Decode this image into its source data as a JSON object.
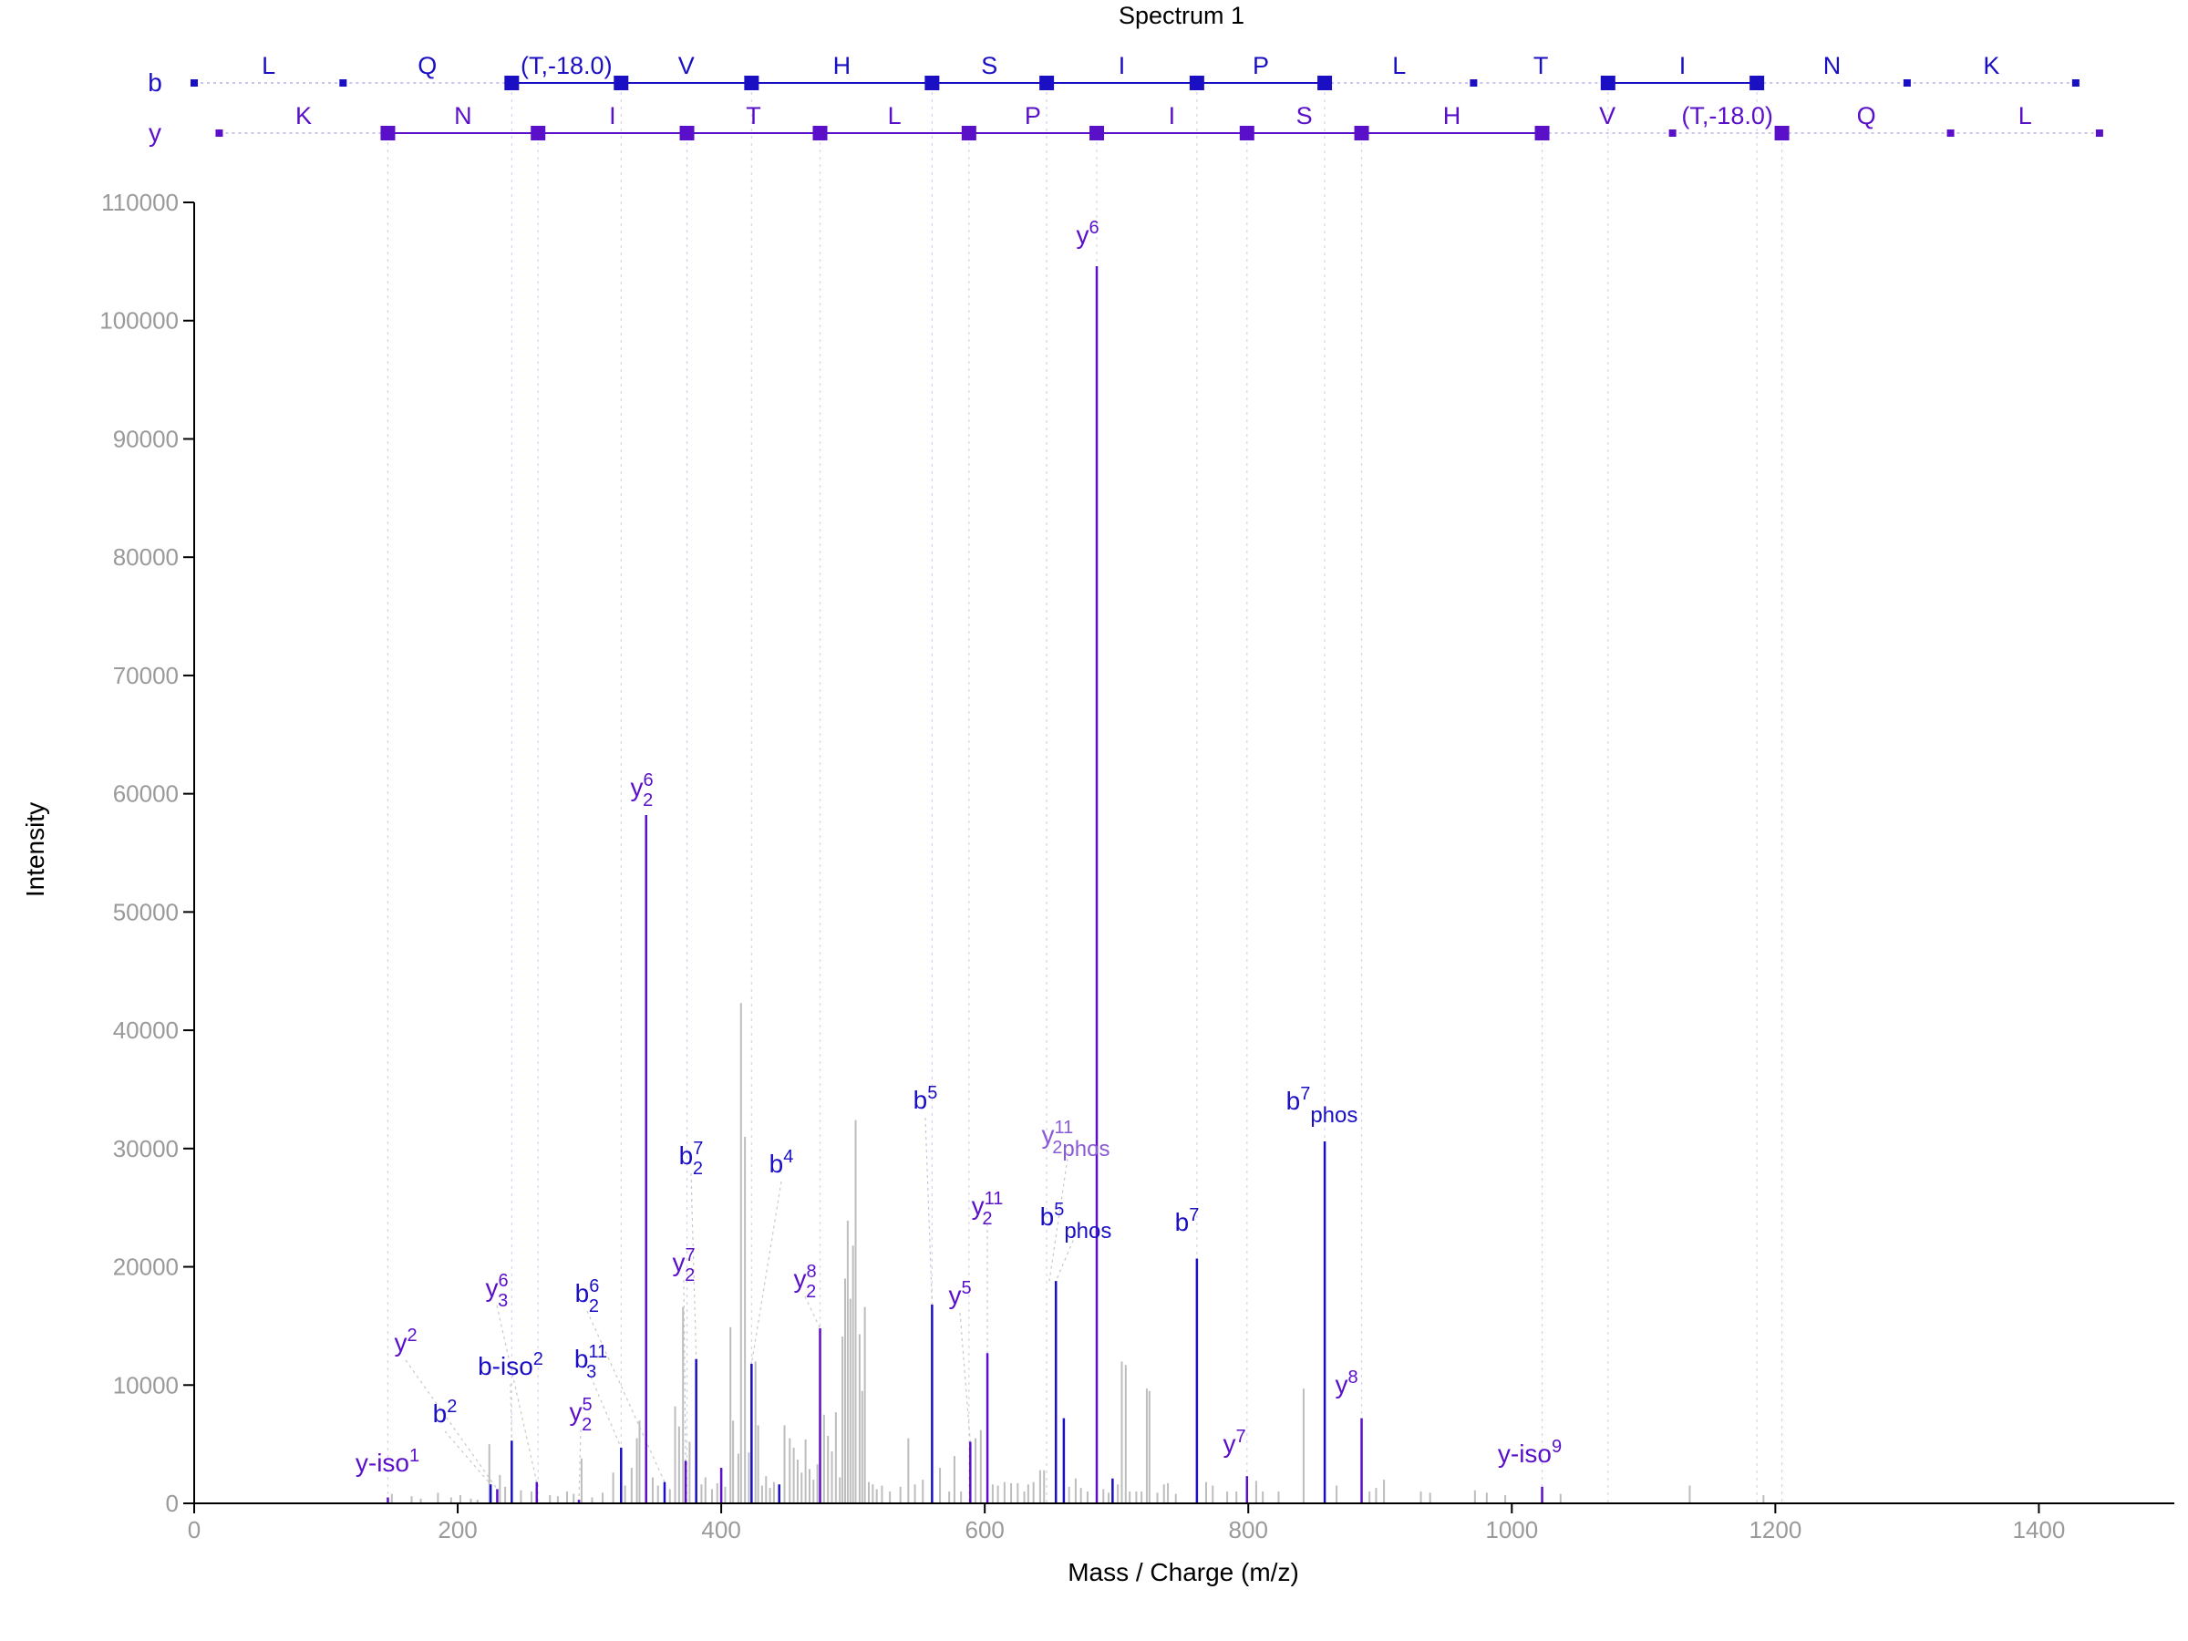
{
  "chart_data": {
    "type": "bar",
    "title": "Spectrum 1",
    "xlabel": "Mass / Charge (m/z)",
    "ylabel": "Intensity",
    "xlim": [
      0,
      1500
    ],
    "ylim": [
      0,
      110000
    ],
    "x_ticks": [
      "0",
      "200",
      "400",
      "600",
      "800",
      "1000",
      "1200",
      "1400"
    ],
    "y_ticks": [
      "0",
      "10000",
      "20000",
      "30000",
      "40000",
      "50000",
      "60000",
      "70000",
      "80000",
      "90000",
      "100000",
      "110000"
    ],
    "colors": {
      "b": "#1b0fc4",
      "y": "#5a0fc8",
      "unannotated": "#bdbdbd",
      "axis": "#000000",
      "ticks": "#9a9a9a"
    },
    "fragment_ladder": {
      "b": {
        "label": "b",
        "residues": [
          "L",
          "Q",
          "(T,-18.0)",
          "V",
          "H",
          "S",
          "I",
          "P",
          "L",
          "T",
          "I",
          "N",
          "K"
        ],
        "breakpoints_mz": [
          0,
          113,
          241,
          324,
          423,
          560,
          647,
          761,
          858,
          971,
          1073,
          1186,
          1300,
          1428
        ],
        "matched": [
          false,
          false,
          true,
          true,
          true,
          true,
          true,
          true,
          true,
          false,
          true,
          true,
          false,
          false
        ]
      },
      "y": {
        "label": "y",
        "residues": [
          "K",
          "N",
          "I",
          "T",
          "L",
          "P",
          "I",
          "S",
          "H",
          "V",
          "(T,-18.0)",
          "Q",
          "L"
        ],
        "breakpoints_mz": [
          19,
          147,
          261,
          374,
          475,
          588,
          685,
          799,
          886,
          1023,
          1122,
          1205,
          1333,
          1446
        ],
        "matched": [
          false,
          true,
          true,
          true,
          true,
          true,
          true,
          true,
          true,
          true,
          false,
          true,
          false,
          false
        ]
      }
    },
    "annotated_peaks": [
      {
        "mz": 147,
        "intensity": 500,
        "series": "y",
        "ion": "y-iso",
        "sup": "1",
        "sub": "",
        "suffix": ""
      },
      {
        "mz": 225,
        "intensity": 1600,
        "series": "b",
        "ion": "b",
        "sup": "2",
        "sub": "",
        "suffix": ""
      },
      {
        "mz": 230,
        "intensity": 1200,
        "series": "y",
        "ion": "y",
        "sup": "2",
        "sub": "",
        "suffix": ""
      },
      {
        "mz": 241,
        "intensity": 5300,
        "series": "b",
        "ion": "b-iso",
        "sup": "2",
        "sub": "",
        "suffix": ""
      },
      {
        "mz": 260,
        "intensity": 1800,
        "series": "y",
        "ion": "y",
        "sup": "6",
        "sub": "3",
        "suffix": ""
      },
      {
        "mz": 292,
        "intensity": 300,
        "series": "y",
        "ion": "y",
        "sup": "5",
        "sub": "2",
        "suffix": ""
      },
      {
        "mz": 324,
        "intensity": 4700,
        "series": "b",
        "ion": "b",
        "sup": "11",
        "sub": "3",
        "suffix": ""
      },
      {
        "mz": 343,
        "intensity": 58200,
        "series": "y",
        "ion": "y",
        "sup": "6",
        "sub": "2",
        "suffix": ""
      },
      {
        "mz": 357,
        "intensity": 1800,
        "series": "b",
        "ion": "b",
        "sup": "6",
        "sub": "2",
        "suffix": ""
      },
      {
        "mz": 373,
        "intensity": 3600,
        "series": "y",
        "ion": "y",
        "sup": "7",
        "sub": "2",
        "suffix": ""
      },
      {
        "mz": 381,
        "intensity": 12200,
        "series": "b",
        "ion": "b",
        "sup": "7",
        "sub": "2",
        "suffix": ""
      },
      {
        "mz": 400,
        "intensity": 3000,
        "series": "y",
        "ion": "y",
        "sup": "",
        "sub": "",
        "suffix": ""
      },
      {
        "mz": 423,
        "intensity": 11800,
        "series": "b",
        "ion": "b",
        "sup": "4",
        "sub": "",
        "suffix": ""
      },
      {
        "mz": 444,
        "intensity": 1600,
        "series": "b",
        "ion": "b",
        "sup": "",
        "sub": "",
        "suffix": ""
      },
      {
        "mz": 475,
        "intensity": 14800,
        "series": "y",
        "ion": "y",
        "sup": "8",
        "sub": "2",
        "suffix": ""
      },
      {
        "mz": 560,
        "intensity": 16800,
        "series": "b",
        "ion": "b",
        "sup": "5",
        "sub": "",
        "suffix": ""
      },
      {
        "mz": 589,
        "intensity": 5200,
        "series": "y",
        "ion": "y",
        "sup": "5",
        "sub": "",
        "suffix": ""
      },
      {
        "mz": 602,
        "intensity": 12700,
        "series": "y",
        "ion": "y",
        "sup": "11",
        "sub": "2",
        "suffix": ""
      },
      {
        "mz": 654,
        "intensity": 18800,
        "series": "b",
        "ion": "b",
        "sup": "5",
        "sub": "",
        "suffix": "phos"
      },
      {
        "mz": 660,
        "intensity": 7200,
        "series": "b",
        "ion": "b",
        "sup": "",
        "sub": "",
        "suffix": ""
      },
      {
        "mz": 685,
        "intensity": 104600,
        "series": "y",
        "ion": "y",
        "sup": "6",
        "sub": "",
        "suffix": ""
      },
      {
        "mz": 697,
        "intensity": 2100,
        "series": "b",
        "ion": "b",
        "sup": "",
        "sub": "",
        "suffix": ""
      },
      {
        "mz": 761,
        "intensity": 20700,
        "series": "b",
        "ion": "b",
        "sup": "7",
        "sub": "",
        "suffix": ""
      },
      {
        "mz": 799,
        "intensity": 2300,
        "series": "y",
        "ion": "y",
        "sup": "7",
        "sub": "",
        "suffix": ""
      },
      {
        "mz": 858,
        "intensity": 30600,
        "series": "b",
        "ion": "b",
        "sup": "7",
        "sub": "",
        "suffix": "phos"
      },
      {
        "mz": 886,
        "intensity": 7200,
        "series": "y",
        "ion": "y",
        "sup": "8",
        "sub": "",
        "suffix": ""
      },
      {
        "mz": 1023,
        "intensity": 1400,
        "series": "y",
        "ion": "y-iso",
        "sup": "9",
        "sub": "",
        "suffix": ""
      }
    ],
    "unlabeled_callouts": [
      {
        "mz": 649,
        "intensity": 18800,
        "series": "y",
        "ion": "y",
        "sup": "11",
        "sub": "2",
        "suffix": "phos"
      }
    ],
    "unannotated_peaks": [
      [
        150,
        800
      ],
      [
        165,
        600
      ],
      [
        172,
        400
      ],
      [
        185,
        900
      ],
      [
        195,
        500
      ],
      [
        202,
        700
      ],
      [
        210,
        400
      ],
      [
        215,
        300
      ],
      [
        224,
        5000
      ],
      [
        232,
        2400
      ],
      [
        236,
        1400
      ],
      [
        248,
        1100
      ],
      [
        256,
        1000
      ],
      [
        270,
        700
      ],
      [
        276,
        600
      ],
      [
        283,
        1000
      ],
      [
        288,
        800
      ],
      [
        294,
        3800
      ],
      [
        302,
        500
      ],
      [
        310,
        900
      ],
      [
        318,
        2600
      ],
      [
        327,
        1500
      ],
      [
        332,
        3000
      ],
      [
        336,
        5500
      ],
      [
        338,
        7000
      ],
      [
        348,
        2200
      ],
      [
        352,
        1500
      ],
      [
        361,
        1200
      ],
      [
        365,
        8200
      ],
      [
        368,
        6500
      ],
      [
        371,
        16600
      ],
      [
        376,
        5200
      ],
      [
        385,
        1600
      ],
      [
        388,
        2200
      ],
      [
        393,
        1200
      ],
      [
        397,
        1700
      ],
      [
        403,
        1400
      ],
      [
        407,
        14900
      ],
      [
        409,
        7000
      ],
      [
        413,
        4200
      ],
      [
        415,
        42300
      ],
      [
        418,
        31000
      ],
      [
        421,
        4300
      ],
      [
        426,
        12000
      ],
      [
        428,
        6600
      ],
      [
        431,
        1500
      ],
      [
        434,
        2300
      ],
      [
        437,
        1300
      ],
      [
        440,
        1800
      ],
      [
        448,
        6600
      ],
      [
        452,
        5500
      ],
      [
        455,
        4700
      ],
      [
        458,
        3700
      ],
      [
        461,
        2600
      ],
      [
        464,
        5400
      ],
      [
        467,
        2900
      ],
      [
        470,
        2000
      ],
      [
        473,
        3300
      ],
      [
        478,
        7500
      ],
      [
        481,
        5700
      ],
      [
        484,
        4400
      ],
      [
        487,
        7700
      ],
      [
        490,
        2200
      ],
      [
        492,
        14100
      ],
      [
        494,
        19000
      ],
      [
        496,
        23900
      ],
      [
        498,
        17300
      ],
      [
        500,
        21800
      ],
      [
        502,
        32400
      ],
      [
        505,
        14300
      ],
      [
        507,
        9500
      ],
      [
        509,
        16600
      ],
      [
        512,
        1800
      ],
      [
        515,
        1600
      ],
      [
        518,
        1200
      ],
      [
        522,
        1500
      ],
      [
        528,
        1000
      ],
      [
        536,
        1400
      ],
      [
        542,
        5500
      ],
      [
        547,
        1600
      ],
      [
        553,
        2000
      ],
      [
        566,
        3000
      ],
      [
        573,
        1000
      ],
      [
        577,
        4000
      ],
      [
        582,
        1000
      ],
      [
        593,
        5500
      ],
      [
        597,
        6200
      ],
      [
        606,
        1600
      ],
      [
        610,
        1500
      ],
      [
        615,
        1800
      ],
      [
        620,
        1700
      ],
      [
        625,
        1700
      ],
      [
        630,
        1000
      ],
      [
        633,
        1600
      ],
      [
        637,
        1800
      ],
      [
        642,
        2800
      ],
      [
        645,
        2800
      ],
      [
        664,
        1400
      ],
      [
        669,
        2100
      ],
      [
        673,
        1300
      ],
      [
        678,
        1000
      ],
      [
        690,
        1200
      ],
      [
        694,
        900
      ],
      [
        701,
        1600
      ],
      [
        704,
        12000
      ],
      [
        707,
        11700
      ],
      [
        710,
        1000
      ],
      [
        715,
        1000
      ],
      [
        719,
        1000
      ],
      [
        723,
        9700
      ],
      [
        725,
        9500
      ],
      [
        731,
        900
      ],
      [
        736,
        1600
      ],
      [
        739,
        1700
      ],
      [
        745,
        800
      ],
      [
        768,
        1800
      ],
      [
        773,
        1500
      ],
      [
        784,
        1000
      ],
      [
        791,
        1000
      ],
      [
        806,
        1900
      ],
      [
        811,
        1000
      ],
      [
        823,
        1000
      ],
      [
        842,
        9700
      ],
      [
        867,
        1500
      ],
      [
        892,
        1000
      ],
      [
        897,
        1300
      ],
      [
        903,
        2000
      ],
      [
        931,
        1000
      ],
      [
        938,
        900
      ],
      [
        972,
        1100
      ],
      [
        981,
        900
      ],
      [
        995,
        700
      ],
      [
        1037,
        800
      ],
      [
        1135,
        1500
      ],
      [
        1191,
        700
      ]
    ]
  }
}
